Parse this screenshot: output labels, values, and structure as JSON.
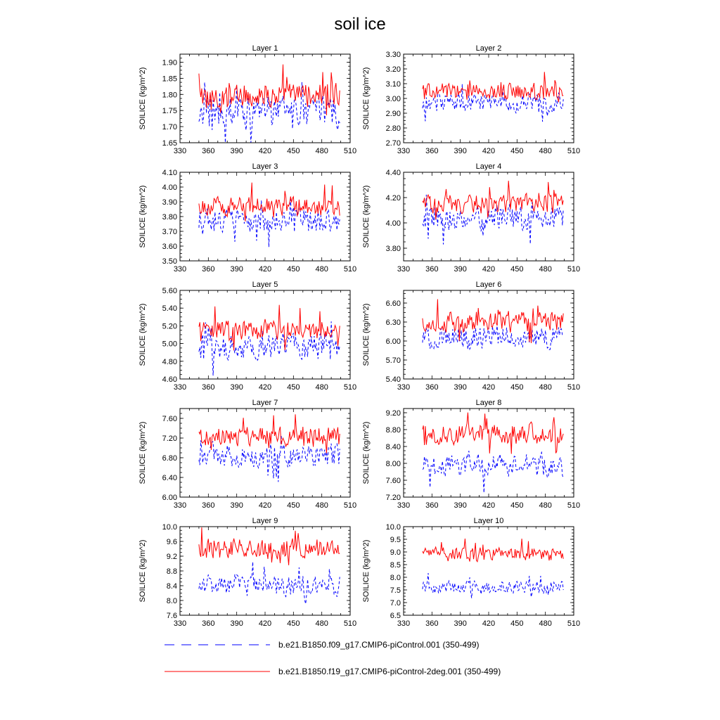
{
  "title": "soil ice",
  "chart_data": {
    "type": "line",
    "title": "soil ice",
    "ylabel": "SOILICE  (kg/m^2)",
    "x_ticks": [
      330,
      360,
      390,
      420,
      450,
      480,
      510
    ],
    "xlim": [
      330,
      510
    ],
    "x_start": 350,
    "x_end": 499,
    "legend": [
      {
        "name": "b.e21.B1850.f09_g17.CMIP6-piControl.001 (350-499)",
        "color": "#0000ff",
        "style": "dashed"
      },
      {
        "name": "b.e21.B1850.f19_g17.CMIP6-piControl-2deg.001 (350-499)",
        "color": "#ff0000",
        "style": "solid"
      }
    ],
    "panels": [
      {
        "title": "Layer 1",
        "ylim": [
          1.65,
          1.925
        ],
        "yticks": [
          "1.65",
          "1.70",
          "1.75",
          "1.80",
          "1.85",
          "1.90"
        ],
        "yvals": [
          1.65,
          1.7,
          1.75,
          1.8,
          1.85,
          1.9
        ],
        "red_mean": 1.8,
        "red_amp": 0.035,
        "blue_mean": 1.745,
        "blue_amp": 0.045
      },
      {
        "title": "Layer 2",
        "ylim": [
          2.7,
          3.3
        ],
        "yticks": [
          "2.70",
          "2.80",
          "2.90",
          "3.00",
          "3.10",
          "3.20",
          "3.30"
        ],
        "yvals": [
          2.7,
          2.8,
          2.9,
          3.0,
          3.1,
          3.2,
          3.3
        ],
        "red_mean": 3.05,
        "red_amp": 0.05,
        "blue_mean": 2.97,
        "blue_amp": 0.06
      },
      {
        "title": "Layer 3",
        "ylim": [
          3.5,
          4.1
        ],
        "yticks": [
          "3.50",
          "3.60",
          "3.70",
          "3.80",
          "3.90",
          "4.00",
          "4.10"
        ],
        "yvals": [
          3.5,
          3.6,
          3.7,
          3.8,
          3.9,
          4.0,
          4.1
        ],
        "red_mean": 3.87,
        "red_amp": 0.06,
        "blue_mean": 3.77,
        "blue_amp": 0.08
      },
      {
        "title": "Layer 4",
        "ylim": [
          3.7,
          4.4
        ],
        "yticks": [
          "3.80",
          "4.00",
          "4.20",
          "4.40"
        ],
        "yvals": [
          3.8,
          4.0,
          4.2,
          4.4
        ],
        "red_mean": 4.15,
        "red_amp": 0.07,
        "blue_mean": 4.04,
        "blue_amp": 0.09
      },
      {
        "title": "Layer 5",
        "ylim": [
          4.6,
          5.6
        ],
        "yticks": [
          "4.60",
          "4.80",
          "5.00",
          "5.20",
          "5.40",
          "5.60"
        ],
        "yvals": [
          4.6,
          4.8,
          5.0,
          5.2,
          5.4,
          5.6
        ],
        "red_mean": 5.15,
        "red_amp": 0.11,
        "blue_mean": 4.97,
        "blue_amp": 0.13
      },
      {
        "title": "Layer 6",
        "ylim": [
          5.4,
          6.8
        ],
        "yticks": [
          "5.40",
          "5.70",
          "6.00",
          "6.30",
          "6.60"
        ],
        "yvals": [
          5.4,
          5.7,
          6.0,
          6.3,
          6.6
        ],
        "red_mean": 6.3,
        "red_amp": 0.15,
        "blue_mean": 6.05,
        "blue_amp": 0.17
      },
      {
        "title": "Layer 7",
        "ylim": [
          6.0,
          7.8
        ],
        "yticks": [
          "6.00",
          "6.40",
          "6.80",
          "7.20",
          "7.60"
        ],
        "yvals": [
          6.0,
          6.4,
          6.8,
          7.2,
          7.6
        ],
        "red_mean": 7.25,
        "red_amp": 0.18,
        "blue_mean": 6.85,
        "blue_amp": 0.22
      },
      {
        "title": "Layer 8",
        "ylim": [
          7.2,
          9.3
        ],
        "yticks": [
          "7.20",
          "7.60",
          "8.00",
          "8.40",
          "8.80",
          "9.20"
        ],
        "yvals": [
          7.2,
          7.6,
          8.0,
          8.4,
          8.8,
          9.2
        ],
        "red_mean": 8.7,
        "red_amp": 0.23,
        "blue_mean": 7.95,
        "blue_amp": 0.25
      },
      {
        "title": "Layer 9",
        "ylim": [
          7.6,
          10.0
        ],
        "yticks": [
          "7.6",
          "8.0",
          "8.4",
          "8.8",
          "9.2",
          "9.6",
          "10.0"
        ],
        "yvals": [
          7.6,
          8.0,
          8.4,
          8.8,
          9.2,
          9.6,
          10.0
        ],
        "red_mean": 9.4,
        "red_amp": 0.25,
        "blue_mean": 8.4,
        "blue_amp": 0.26
      },
      {
        "title": "Layer 10",
        "ylim": [
          6.5,
          10.0
        ],
        "yticks": [
          "6.5",
          "7.0",
          "7.5",
          "8.0",
          "8.5",
          "9.0",
          "9.5",
          "10.0"
        ],
        "yvals": [
          6.5,
          7.0,
          7.5,
          8.0,
          8.5,
          9.0,
          9.5,
          10.0
        ],
        "red_mean": 8.9,
        "red_amp": 0.25,
        "blue_mean": 7.6,
        "blue_amp": 0.25
      }
    ]
  }
}
